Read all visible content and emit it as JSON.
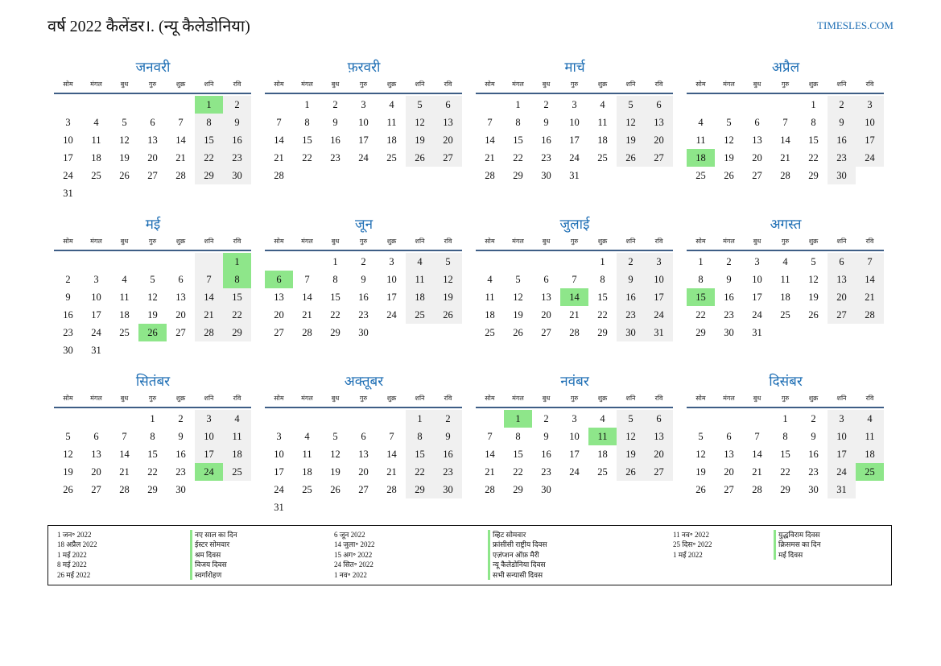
{
  "header": {
    "title": "वर्ष 2022 कैलेंडर।. (न्यू कैलेडोनिया)",
    "site_link": "TIMESLES.COM"
  },
  "weekdays": [
    "सोम",
    "मंगल",
    "बुध",
    "गुरु",
    "शुक्र",
    "शनि",
    "रवि"
  ],
  "colors": {
    "accent": "#1f6fb5",
    "holiday": "#8ee68a",
    "weekend": "#f0f0f0",
    "rule": "#3e5e86"
  },
  "months": [
    {
      "name": "जनवरी",
      "offset": 5,
      "days": 31,
      "holidays": [
        1
      ]
    },
    {
      "name": "फ़रवरी",
      "offset": 1,
      "days": 28,
      "holidays": []
    },
    {
      "name": "मार्च",
      "offset": 1,
      "days": 31,
      "holidays": []
    },
    {
      "name": "अप्रैल",
      "offset": 4,
      "days": 30,
      "holidays": [
        18
      ]
    },
    {
      "name": "मई",
      "offset": 6,
      "days": 31,
      "holidays": [
        1,
        8,
        26
      ]
    },
    {
      "name": "जून",
      "offset": 2,
      "days": 30,
      "holidays": [
        6
      ]
    },
    {
      "name": "जुलाई",
      "offset": 4,
      "days": 31,
      "holidays": [
        14
      ]
    },
    {
      "name": "अगस्त",
      "offset": 0,
      "days": 31,
      "holidays": [
        15
      ]
    },
    {
      "name": "सितंबर",
      "offset": 3,
      "days": 30,
      "holidays": [
        24
      ]
    },
    {
      "name": "अक्तूबर",
      "offset": 5,
      "days": 31,
      "holidays": []
    },
    {
      "name": "नवंबर",
      "offset": 1,
      "days": 30,
      "holidays": [
        1,
        11
      ]
    },
    {
      "name": "दिसंबर",
      "offset": 3,
      "days": 31,
      "holidays": [
        25
      ]
    }
  ],
  "holiday_list": [
    [
      {
        "date": "1 जन॰ 2022",
        "name": "नए साल का दिन"
      },
      {
        "date": "18 अप्रैल 2022",
        "name": "ईस्टर सोमवार"
      },
      {
        "date": "1 मई 2022",
        "name": "श्रम दिवस"
      },
      {
        "date": "8 मई 2022",
        "name": "विजय दिवस"
      },
      {
        "date": "26 मई 2022",
        "name": "स्वर्गारोहण"
      }
    ],
    [
      {
        "date": "6 जून 2022",
        "name": "व्हिट सोमवार"
      },
      {
        "date": "14 जुला॰ 2022",
        "name": "फ्रांसीसी राष्ट्रीय दिवस"
      },
      {
        "date": "15 अग॰ 2022",
        "name": "एज़ंप्शन ऑफ़ मैरी"
      },
      {
        "date": "24 सित॰ 2022",
        "name": "न्यू कैलेडोनिया दिवस"
      },
      {
        "date": "1 नव॰ 2022",
        "name": "सभी सन्यासी दिवस"
      }
    ],
    [
      {
        "date": "11 नव॰ 2022",
        "name": "युद्धविराम दिवस"
      },
      {
        "date": "25 दिस॰ 2022",
        "name": "क्रिसमस का दिन"
      },
      {
        "date": "1 मई 2022",
        "name": "मई दिवस"
      }
    ]
  ]
}
